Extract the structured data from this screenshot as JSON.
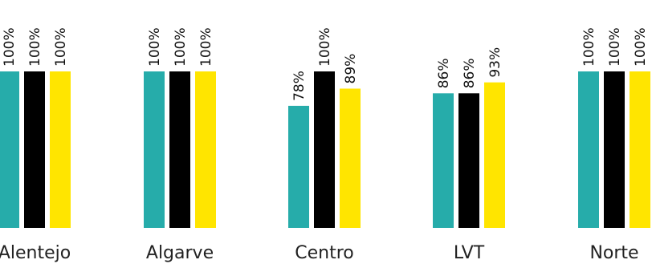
{
  "chart_data": {
    "type": "bar",
    "categories": [
      "Alentejo",
      "Algarve",
      "Centro",
      "LVT",
      "Norte"
    ],
    "series": [
      {
        "values": [
          100,
          100,
          78,
          86,
          100
        ],
        "labels": [
          "100%",
          "100%",
          "78%",
          "86%",
          "100%"
        ]
      },
      {
        "values": [
          100,
          100,
          100,
          86,
          100
        ],
        "labels": [
          "100%",
          "100%",
          "100%",
          "86%",
          "100%"
        ]
      },
      {
        "values": [
          100,
          100,
          89,
          93,
          100
        ],
        "labels": [
          "100%",
          "100%",
          "89%",
          "93%",
          "100%"
        ]
      }
    ],
    "ylim": [
      0,
      100
    ],
    "grid": false,
    "colors": [
      "#26ACAA",
      "#000000",
      "#FFE500"
    ]
  }
}
